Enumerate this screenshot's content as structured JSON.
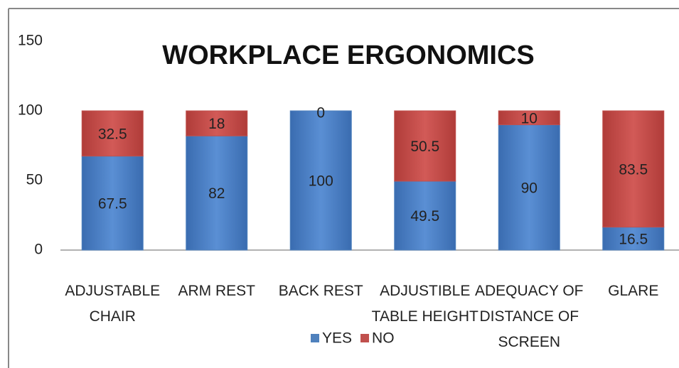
{
  "chart_data": {
    "type": "stacked_bar",
    "title": "WORKPLACE ERGONOMICS",
    "categories": [
      "ADJUSTABLE CHAIR",
      "ARM REST",
      "BACK REST",
      "ADJUSTIBLE TABLE HEIGHT",
      "ADEQUACY OF DISTANCE OF SCREEN",
      "GLARE"
    ],
    "series": [
      {
        "name": "YES",
        "color": "#4f81bd",
        "values": [
          67.5,
          82,
          100,
          49.5,
          90,
          16.5
        ]
      },
      {
        "name": "NO",
        "color": "#c0504d",
        "values": [
          32.5,
          18,
          0,
          50.5,
          10,
          83.5
        ]
      }
    ],
    "ylim": [
      0,
      150
    ],
    "yticks": [
      0,
      50,
      100,
      150
    ],
    "legend": "bottom"
  }
}
